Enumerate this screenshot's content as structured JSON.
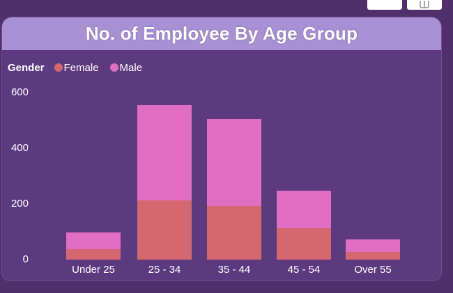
{
  "window": {
    "buttons": [
      {
        "name": "header-action-blank",
        "icon": "blank-icon"
      },
      {
        "name": "header-action-popout",
        "icon": "pop-out-icon"
      }
    ]
  },
  "card": {
    "title": "No. of Employee By Age Group"
  },
  "legend": {
    "label": "Gender",
    "items": [
      {
        "label": "Female",
        "color": "#d4686e"
      },
      {
        "label": "Male",
        "color": "#e06ec2"
      }
    ]
  },
  "chart_data": {
    "type": "bar",
    "stacked": true,
    "title": "No. of Employee By Age Group",
    "categories": [
      "Under 25",
      "25 - 34",
      "35 - 44",
      "45 - 54",
      "Over 55"
    ],
    "series": [
      {
        "name": "Female",
        "color": "#d4686e",
        "values": [
          38,
          213,
          193,
          113,
          27
        ]
      },
      {
        "name": "Male",
        "color": "#e06ec2",
        "values": [
          60,
          342,
          312,
          135,
          45
        ]
      }
    ],
    "totals": [
      98,
      555,
      505,
      248,
      72
    ],
    "y_ticks": [
      0,
      200,
      400,
      600
    ],
    "ylim": [
      0,
      600
    ],
    "xlabel": "",
    "ylabel": "",
    "legend_title": "Gender",
    "legend_position": "top-left",
    "grid": false
  },
  "colors": {
    "outer_background": "#512f6d",
    "card_background": "#5d3a80",
    "title_band": "#a791d4",
    "text": "#ffffff",
    "female": "#d4686e",
    "male": "#e06ec2"
  }
}
